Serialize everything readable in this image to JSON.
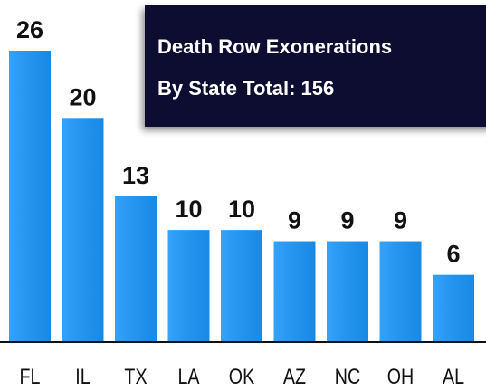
{
  "chart_data": {
    "type": "bar",
    "title": "Death Row Exonerations",
    "subtitle": "By State Total: 156",
    "categories": [
      "FL",
      "IL",
      "TX",
      "LA",
      "OK",
      "AZ",
      "NC",
      "OH",
      "AL"
    ],
    "values": [
      26,
      20,
      13,
      10,
      10,
      9,
      9,
      9,
      6
    ],
    "color": "#1a96fa"
  }
}
